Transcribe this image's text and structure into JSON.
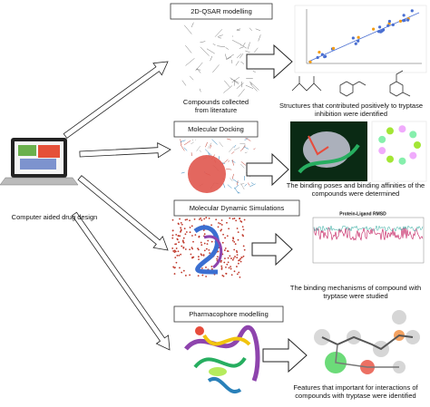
{
  "left": {
    "label": "Computer aided drug design"
  },
  "steps": [
    {
      "title": "2D-QSAR modelling",
      "input_caption": [
        "Compounds collected",
        "from literature"
      ],
      "result_caption": [
        "Structures that contributed positively to tryptase",
        "inhibition were identified"
      ]
    },
    {
      "title": "Molecular Docking",
      "result_caption": [
        "The binding poses and binding affinities of the",
        "compounds were determined"
      ]
    },
    {
      "title": "Molecular Dynamic Simulations",
      "result_caption": [
        "The binding mechanisms of compound with",
        "tryptase were studied"
      ],
      "plot_title": "Protein-Ligand RMSD"
    },
    {
      "title": "Pharmacophore modelling",
      "result_caption": [
        "Features that important for  interactions of",
        "compounds with tryptase were identified"
      ]
    }
  ]
}
